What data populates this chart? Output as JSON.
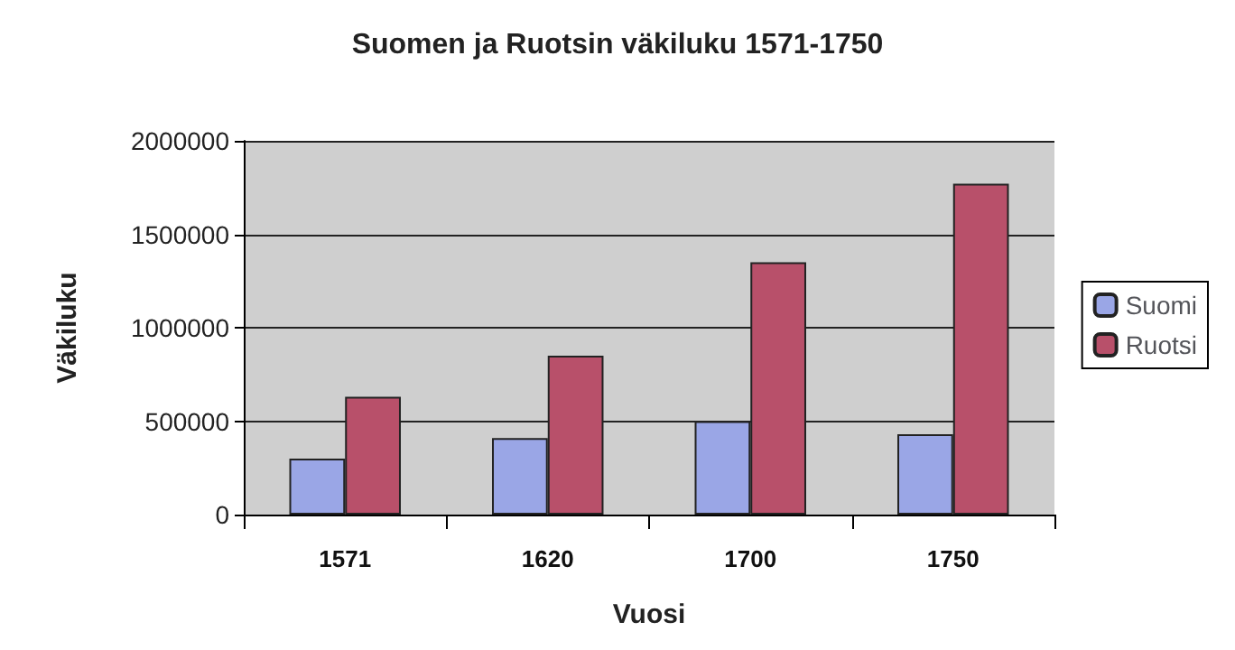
{
  "chart_data": {
    "type": "bar",
    "title": "Suomen ja Ruotsin väkiluku 1571-1750",
    "xlabel": "Vuosi",
    "ylabel": "Väkiluku",
    "categories": [
      "1571",
      "1620",
      "1700",
      "1750"
    ],
    "series": [
      {
        "name": "Suomi",
        "color": "#9aa6e6",
        "values": [
          300000,
          410000,
          500000,
          430000
        ]
      },
      {
        "name": "Ruotsi",
        "color": "#b8506a",
        "values": [
          630000,
          850000,
          1350000,
          1770000
        ]
      }
    ],
    "ylim": [
      0,
      2000000
    ],
    "yticks": [
      0,
      500000,
      1000000,
      1500000,
      2000000
    ],
    "grid": "y",
    "legend": "right"
  }
}
